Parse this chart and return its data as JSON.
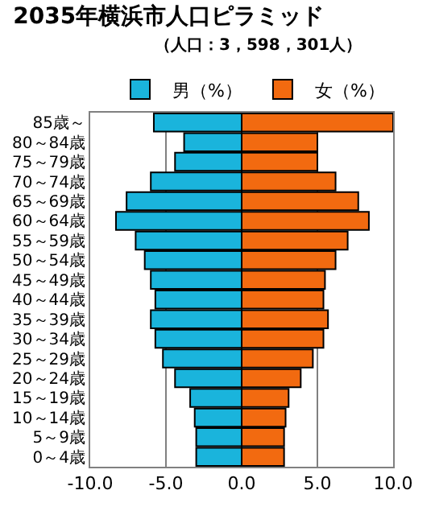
{
  "chart_data": {
    "type": "bar",
    "orientation": "horizontal",
    "title": "2035年横浜市人口ピラミッド",
    "subtitle": "（人口：3，598，301人）",
    "categories": [
      "85歳～",
      "80～84歳",
      "75～79歳",
      "70～74歳",
      "65～69歳",
      "60～64歳",
      "55～59歳",
      "50～54歳",
      "45～49歳",
      "40～44歳",
      "35～39歳",
      "30～34歳",
      "25～29歳",
      "20～24歳",
      "15～19歳",
      "10～14歳",
      "5～9歳",
      "0～4歳"
    ],
    "series": [
      {
        "name": "男（%）",
        "color": "#1ab4dc",
        "values": [
          -5.8,
          -3.8,
          -4.4,
          -6.0,
          -7.6,
          -8.3,
          -7.0,
          -6.4,
          -6.0,
          -5.7,
          -6.0,
          -5.7,
          -5.2,
          -4.4,
          -3.4,
          -3.1,
          -3.0,
          -3.0
        ]
      },
      {
        "name": "女（%）",
        "color": "#f26a10",
        "values": [
          10.0,
          5.0,
          5.0,
          6.2,
          7.7,
          8.4,
          7.0,
          6.2,
          5.5,
          5.4,
          5.7,
          5.4,
          4.7,
          3.9,
          3.1,
          2.9,
          2.8,
          2.8
        ]
      }
    ],
    "xlim": [
      -10,
      10
    ],
    "xticks": [
      {
        "value": -10,
        "label": "-10.0"
      },
      {
        "value": -5,
        "label": "-5.0"
      },
      {
        "value": 0,
        "label": "0.0"
      },
      {
        "value": 5,
        "label": "5.0"
      },
      {
        "value": 10,
        "label": "10.0"
      }
    ],
    "grid": "x",
    "stacked": true,
    "legend": "top right"
  }
}
